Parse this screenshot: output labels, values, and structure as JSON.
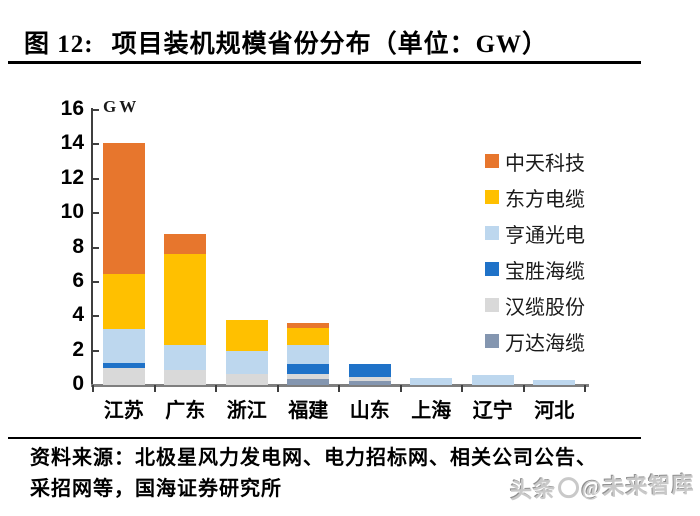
{
  "title": {
    "prefix": "图 12:",
    "text": "项目装机规模省份分布（单位：GW）"
  },
  "chart_data": {
    "type": "bar",
    "stacked": true,
    "title": "项目装机规模省份分布",
    "unit_label": "GW",
    "categories": [
      "江苏",
      "广东",
      "浙江",
      "福建",
      "山东",
      "上海",
      "辽宁",
      "河北"
    ],
    "series": [
      {
        "name": "中天科技",
        "color": "#E7762D",
        "values": [
          7.65,
          1.15,
          0,
          0.3,
          0,
          0,
          0,
          0
        ]
      },
      {
        "name": "东方电缆",
        "color": "#FFC000",
        "values": [
          3.2,
          5.35,
          1.8,
          1.0,
          0,
          0,
          0,
          0
        ]
      },
      {
        "name": "亨通光电",
        "color": "#BDD7EE",
        "values": [
          1.95,
          1.45,
          1.35,
          1.05,
          0,
          0.4,
          0.6,
          0.3
        ]
      },
      {
        "name": "宝胜海缆",
        "color": "#1F72C8",
        "values": [
          0.3,
          0,
          0,
          0.6,
          0.75,
          0,
          0,
          0
        ]
      },
      {
        "name": "汉缆股份",
        "color": "#D9D9D9",
        "values": [
          1.0,
          0.85,
          0.65,
          0.3,
          0.2,
          0,
          0,
          0
        ]
      },
      {
        "name": "万达海缆",
        "color": "#8496B0",
        "values": [
          0,
          0,
          0,
          0.35,
          0.25,
          0,
          0,
          0
        ]
      }
    ],
    "stack_bottom_to_top": [
      "万达海缆",
      "汉缆股份",
      "宝胜海缆",
      "亨通光电",
      "东方电缆",
      "中天科技"
    ],
    "ylim": [
      0,
      16
    ],
    "yticks": [
      0,
      2,
      4,
      6,
      8,
      10,
      12,
      14,
      16
    ],
    "legend_position": "right",
    "grid": false
  },
  "footer": {
    "line1": "资料来源：北极星风力发电网、电力招标网、相关公司公告、",
    "line2": "采招网等，国海证券研究所"
  },
  "watermark": {
    "prefix": "头条",
    "suffix": "@未来智库"
  }
}
